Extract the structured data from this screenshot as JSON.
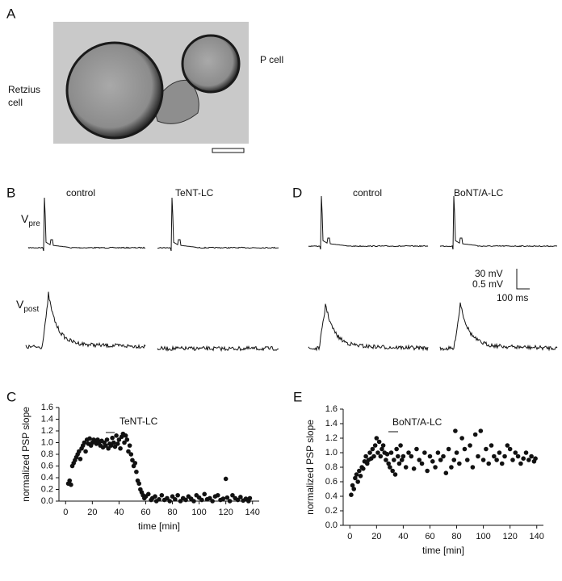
{
  "panel_a": {
    "label": "A",
    "left_cell": "Retzius\ncell",
    "right_cell": "P cell"
  },
  "panel_b": {
    "label": "B",
    "control": "control",
    "treatment": "TeNT-LC"
  },
  "panel_d": {
    "label": "D",
    "control": "control",
    "treatment": "BoNT/A-LC"
  },
  "traces": {
    "pre_symbol": "V",
    "pre_subscript": "pre",
    "post_symbol": "V",
    "post_subscript": "post",
    "scale_pre": "30 mV",
    "scale_post": "0.5 mV",
    "scale_time": "100 ms"
  },
  "chart_data": [
    {
      "type": "scatter",
      "panel": "C",
      "annotation": "TeNT-LC",
      "xlabel": "time [min]",
      "ylabel": "normalized PSP slope",
      "color": "#111111",
      "xlim": [
        -5,
        145
      ],
      "ylim": [
        0,
        1.6
      ],
      "xticks": [
        0,
        20,
        40,
        60,
        80,
        100,
        120,
        140
      ],
      "yticks": [
        {
          "value": 0,
          "label": "0.0"
        },
        0.2,
        0.4,
        0.6,
        0.8,
        {
          "value": 1,
          "label": "1.0"
        },
        1.2,
        1.4,
        1.6
      ],
      "x": [
        2,
        3,
        4,
        5,
        6,
        7,
        8,
        9,
        10,
        11,
        12,
        13,
        14,
        15,
        16,
        17,
        18,
        19,
        20,
        21,
        22,
        23,
        24,
        25,
        26,
        27,
        28,
        29,
        30,
        31,
        32,
        33,
        34,
        35,
        36,
        37,
        38,
        39,
        40,
        41,
        42,
        43,
        44,
        45,
        46,
        47,
        48,
        49,
        50,
        51,
        52,
        53,
        54,
        55,
        56,
        57,
        58,
        59,
        60,
        62,
        64,
        65,
        67,
        68,
        70,
        72,
        74,
        76,
        78,
        80,
        82,
        84,
        86,
        88,
        90,
        92,
        94,
        96,
        98,
        100,
        102,
        104,
        106,
        108,
        110,
        112,
        114,
        116,
        118,
        120,
        121,
        123,
        125,
        127,
        129,
        131,
        133,
        135,
        137,
        138
      ],
      "values": [
        0.3,
        0.35,
        0.28,
        0.6,
        0.65,
        0.7,
        0.75,
        0.8,
        0.85,
        0.72,
        0.9,
        0.95,
        1.0,
        0.85,
        1.05,
        0.98,
        1.07,
        0.95,
        1.0,
        1.05,
        1.02,
        0.98,
        1.05,
        1.0,
        0.95,
        1.03,
        0.92,
        1.0,
        0.95,
        1.05,
        0.9,
        0.98,
        0.95,
        1.08,
        1.0,
        0.93,
        1.12,
        0.98,
        1.05,
        0.9,
        1.1,
        1.15,
        1.0,
        1.12,
        1.05,
        0.85,
        0.95,
        0.8,
        0.7,
        0.6,
        0.65,
        0.5,
        0.35,
        0.3,
        0.2,
        0.15,
        0.1,
        0.05,
        0.08,
        0.12,
        0.02,
        0.05,
        0.08,
        0.0,
        0.03,
        0.1,
        0.02,
        0.05,
        0.0,
        0.08,
        0.03,
        0.1,
        0.0,
        0.05,
        0.02,
        0.08,
        0.04,
        0.0,
        0.1,
        0.06,
        0.02,
        0.12,
        0.03,
        0.05,
        0.0,
        0.08,
        0.1,
        0.02,
        0.04,
        0.38,
        0.06,
        0.0,
        0.1,
        0.05,
        0.02,
        0.07,
        0.01,
        0.04,
        0.0,
        0.05
      ]
    },
    {
      "type": "scatter",
      "panel": "E",
      "annotation": "BoNT/A-LC",
      "xlabel": "time [min]",
      "ylabel": "normalized PSP slope",
      "color": "#111111",
      "xlim": [
        -5,
        145
      ],
      "ylim": [
        0,
        1.6
      ],
      "xticks": [
        0,
        20,
        40,
        60,
        80,
        100,
        120,
        140
      ],
      "yticks": [
        {
          "value": 0,
          "label": "0.0"
        },
        0.2,
        0.4,
        0.6,
        0.8,
        {
          "value": 1,
          "label": "1.0"
        },
        1.2,
        1.4,
        1.6
      ],
      "x": [
        1,
        2,
        3,
        4,
        5,
        6,
        7,
        8,
        9,
        10,
        11,
        12,
        13,
        14,
        15,
        16,
        17,
        18,
        19,
        20,
        21,
        22,
        23,
        24,
        25,
        26,
        27,
        28,
        29,
        30,
        31,
        32,
        33,
        34,
        35,
        36,
        37,
        38,
        39,
        40,
        42,
        44,
        46,
        48,
        50,
        52,
        54,
        56,
        58,
        60,
        62,
        64,
        66,
        68,
        70,
        72,
        74,
        76,
        78,
        79,
        80,
        82,
        84,
        86,
        88,
        90,
        92,
        94,
        96,
        98,
        100,
        102,
        104,
        106,
        108,
        110,
        112,
        114,
        116,
        118,
        120,
        122,
        124,
        126,
        128,
        130,
        132,
        134,
        136,
        138,
        139
      ],
      "values": [
        0.42,
        0.55,
        0.5,
        0.65,
        0.7,
        0.6,
        0.75,
        0.68,
        0.8,
        0.78,
        0.88,
        0.95,
        0.85,
        0.9,
        1.0,
        0.92,
        1.05,
        0.95,
        1.1,
        1.2,
        1.0,
        1.15,
        0.95,
        1.05,
        1.1,
        1.0,
        0.9,
        0.98,
        0.85,
        0.8,
        1.0,
        0.75,
        0.9,
        0.7,
        1.05,
        0.95,
        0.85,
        1.1,
        0.9,
        0.95,
        0.8,
        1.0,
        0.95,
        0.78,
        1.05,
        0.9,
        0.85,
        1.0,
        0.75,
        0.95,
        0.88,
        0.8,
        1.0,
        0.9,
        0.95,
        0.72,
        1.05,
        0.8,
        0.9,
        1.3,
        1.0,
        0.85,
        1.2,
        1.05,
        0.9,
        1.1,
        0.8,
        1.25,
        0.95,
        1.3,
        0.9,
        1.05,
        0.85,
        1.1,
        0.95,
        0.9,
        1.0,
        0.85,
        0.95,
        1.1,
        1.05,
        0.9,
        1.0,
        0.95,
        0.85,
        0.92,
        1.0,
        0.9,
        0.95,
        0.88,
        0.92
      ]
    }
  ]
}
